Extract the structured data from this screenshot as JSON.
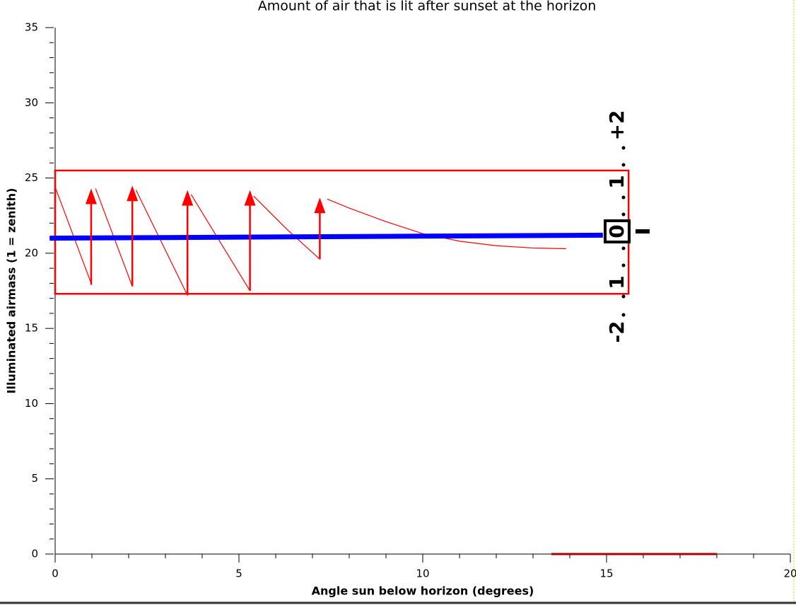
{
  "chart_data": {
    "type": "line",
    "title": "Amount of air that is lit after sunset at the horizon",
    "xlabel": "Angle sun below horizon (degrees)",
    "ylabel": "Illuminated airmass (1 = zenith)",
    "xlim": [
      0,
      20
    ],
    "ylim": [
      0,
      35
    ],
    "xticks": [
      0,
      5,
      10,
      15,
      20
    ],
    "yticks": [
      0,
      5,
      10,
      15,
      20,
      25,
      30,
      35
    ],
    "xminorticks": [
      1,
      2,
      3,
      4,
      6,
      7,
      8,
      9,
      11,
      12,
      13,
      14,
      16,
      17,
      18,
      19
    ],
    "yminorticks": [
      1,
      2,
      3,
      4,
      6,
      7,
      8,
      9,
      11,
      12,
      13,
      14,
      16,
      17,
      18,
      19,
      21,
      22,
      23,
      24,
      26,
      27,
      28,
      29,
      31,
      32,
      33,
      34
    ],
    "series": [
      {
        "color": "#ff0000",
        "width": 1.2,
        "x": [
          0,
          0.98,
          0.98,
          1.1,
          2.1,
          2.1,
          2.2,
          3.6,
          3.6,
          3.7,
          5.3,
          5.3,
          5.4,
          6.3,
          7.2,
          7.2,
          7.4,
          8,
          9,
          10,
          11,
          12,
          13,
          13.9
        ],
        "values": [
          24.4,
          18.0,
          null,
          24.3,
          17.8,
          null,
          24.2,
          17.2,
          null,
          23.9,
          17.5,
          null,
          23.8,
          21.6,
          19.6,
          null,
          23.6,
          23.0,
          22.1,
          21.3,
          20.8,
          20.5,
          20.35,
          20.3
        ]
      },
      {
        "color": "#0000ff",
        "width": 7,
        "x": [
          -0.15,
          14.9
        ],
        "values": [
          21.0,
          21.2
        ]
      }
    ],
    "arrows": [
      {
        "x": 0.98,
        "from": 17.9,
        "to": 24.3
      },
      {
        "x": 2.1,
        "from": 17.8,
        "to": 24.5
      },
      {
        "x": 3.6,
        "from": 17.2,
        "to": 24.2
      },
      {
        "x": 5.3,
        "from": 17.5,
        "to": 24.2
      },
      {
        "x": 7.2,
        "from": 19.6,
        "to": 23.7
      }
    ],
    "arrow_color": "#ff0000",
    "box": {
      "x": [
        0,
        15.6
      ],
      "y": [
        17.3,
        25.5
      ],
      "color": "#ff0000"
    },
    "baseline_bar": {
      "x": [
        13.5,
        18
      ],
      "y": 0,
      "color": "#aa0000"
    },
    "scale_labels": [
      "-2",
      "1",
      "0",
      "1",
      "+2"
    ]
  }
}
